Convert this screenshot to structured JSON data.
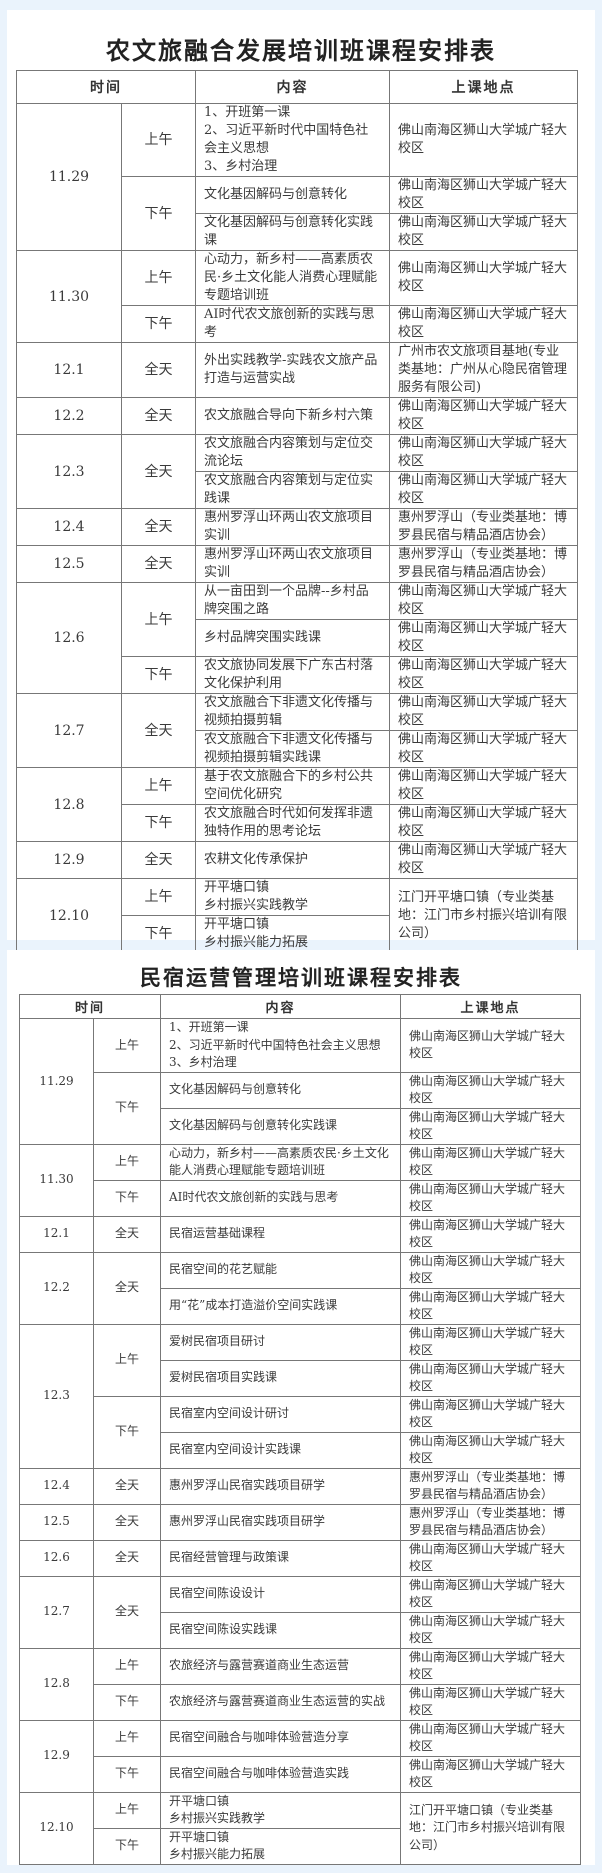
{
  "colors": {
    "background": "#eaf3fc",
    "card": "#ffffff",
    "border": "#777777"
  },
  "table1": {
    "title": "农文旅融合发展培训班课程安排表",
    "headers": {
      "time": "时间",
      "content": "内容",
      "location": "上课地点"
    },
    "days": [
      {
        "date": "11.29",
        "sessions": [
          {
            "period": "上午",
            "items": [
              {
                "content": "1、开班第一课\n2、习近平新时代中国特色社会主义思想\n3、乡村治理",
                "location": "佛山南海区狮山大学城广轻大校区"
              }
            ]
          },
          {
            "period": "下午",
            "items": [
              {
                "content": "文化基因解码与创意转化",
                "location": "佛山南海区狮山大学城广轻大校区"
              },
              {
                "content": "文化基因解码与创意转化实践课",
                "location": "佛山南海区狮山大学城广轻大校区"
              }
            ]
          }
        ]
      },
      {
        "date": "11.30",
        "sessions": [
          {
            "period": "上午",
            "items": [
              {
                "content": "心动力，新乡村——高素质农民·乡土文化能人消费心理赋能专题培训班",
                "location": "佛山南海区狮山大学城广轻大校区"
              }
            ]
          },
          {
            "period": "下午",
            "items": [
              {
                "content": "AI时代农文旅创新的实践与思考",
                "location": "佛山南海区狮山大学城广轻大校区"
              }
            ]
          }
        ]
      },
      {
        "date": "12.1",
        "sessions": [
          {
            "period": "全天",
            "items": [
              {
                "content": "外出实践教学-实践农文旅产品打造与运营实战",
                "location": "广州市农文旅项目基地(专业类基地：广州从心隐民宿管理服务有限公司)"
              }
            ]
          }
        ]
      },
      {
        "date": "12.2",
        "sessions": [
          {
            "period": "全天",
            "items": [
              {
                "content": "农文旅融合导向下新乡村六策",
                "location": "佛山南海区狮山大学城广轻大校区"
              }
            ]
          }
        ]
      },
      {
        "date": "12.3",
        "sessions": [
          {
            "period": "全天",
            "items": [
              {
                "content": "农文旅融合内容策划与定位交流论坛",
                "location": "佛山南海区狮山大学城广轻大校区"
              },
              {
                "content": "农文旅融合内容策划与定位实践课",
                "location": "佛山南海区狮山大学城广轻大校区"
              }
            ]
          }
        ]
      },
      {
        "date": "12.4",
        "sessions": [
          {
            "period": "全天",
            "items": [
              {
                "content": "惠州罗浮山环两山农文旅项目实训",
                "location": "惠州罗浮山（专业类基地：博罗县民宿与精品酒店协会）"
              }
            ]
          }
        ]
      },
      {
        "date": "12.5",
        "sessions": [
          {
            "period": "全天",
            "items": [
              {
                "content": "惠州罗浮山环两山农文旅项目实训",
                "location": "惠州罗浮山（专业类基地：博罗县民宿与精品酒店协会）"
              }
            ]
          }
        ]
      },
      {
        "date": "12.6",
        "sessions": [
          {
            "period": "上午",
            "items": [
              {
                "content": "从一亩田到一个品牌--乡村品牌突围之路",
                "location": "佛山南海区狮山大学城广轻大校区"
              },
              {
                "content": "乡村品牌突围实践课",
                "location": "佛山南海区狮山大学城广轻大校区"
              }
            ]
          },
          {
            "period": "下午",
            "items": [
              {
                "content": "农文旅协同发展下广东古村落文化保护利用",
                "location": "佛山南海区狮山大学城广轻大校区"
              }
            ]
          }
        ]
      },
      {
        "date": "12.7",
        "sessions": [
          {
            "period": "全天",
            "items": [
              {
                "content": "农文旅融合下非遗文化传播与视频拍摄剪辑",
                "location": "佛山南海区狮山大学城广轻大校区"
              },
              {
                "content": "农文旅融合下非遗文化传播与视频拍摄剪辑实践课",
                "location": "佛山南海区狮山大学城广轻大校区"
              }
            ]
          }
        ]
      },
      {
        "date": "12.8",
        "sessions": [
          {
            "period": "上午",
            "items": [
              {
                "content": "基于农文旅融合下的乡村公共空间优化研究",
                "location": "佛山南海区狮山大学城广轻大校区"
              }
            ]
          },
          {
            "period": "下午",
            "items": [
              {
                "content": "农文旅融合时代如何发挥非遗独特作用的思考论坛",
                "location": "佛山南海区狮山大学城广轻大校区"
              }
            ]
          }
        ]
      },
      {
        "date": "12.9",
        "sessions": [
          {
            "period": "全天",
            "items": [
              {
                "content": "农耕文化传承保护",
                "location": "佛山南海区狮山大学城广轻大校区"
              }
            ]
          }
        ]
      },
      {
        "date": "12.10",
        "shared_location": "江门开平塘口镇（专业类基地：江门市乡村振兴培训有限公司）",
        "sessions": [
          {
            "period": "上午",
            "items": [
              {
                "content": "开平塘口镇\n乡村振兴实践教学"
              }
            ]
          },
          {
            "period": "下午",
            "items": [
              {
                "content": "开平塘口镇\n乡村振兴能力拓展"
              }
            ]
          }
        ]
      }
    ]
  },
  "table2": {
    "title": "民宿运营管理培训班课程安排表",
    "headers": {
      "time": "时间",
      "content": "内容",
      "location": "上课地点"
    },
    "days": [
      {
        "date": "11.29",
        "sessions": [
          {
            "period": "上午",
            "items": [
              {
                "content": "1、开班第一课\n2、习近平新时代中国特色社会主义思想\n3、乡村治理",
                "location": "佛山南海区狮山大学城广轻大校区"
              }
            ]
          },
          {
            "period": "下午",
            "items": [
              {
                "content": "文化基因解码与创意转化",
                "location": "佛山南海区狮山大学城广轻大校区"
              },
              {
                "content": "文化基因解码与创意转化实践课",
                "location": "佛山南海区狮山大学城广轻大校区"
              }
            ]
          }
        ]
      },
      {
        "date": "11.30",
        "sessions": [
          {
            "period": "上午",
            "items": [
              {
                "content": "心动力，新乡村——高素质农民·乡土文化能人消费心理赋能专题培训班",
                "location": "佛山南海区狮山大学城广轻大校区"
              }
            ]
          },
          {
            "period": "下午",
            "items": [
              {
                "content": "AI时代农文旅创新的实践与思考",
                "location": "佛山南海区狮山大学城广轻大校区"
              }
            ]
          }
        ]
      },
      {
        "date": "12.1",
        "sessions": [
          {
            "period": "全天",
            "items": [
              {
                "content": "民宿运营基础课程",
                "location": "佛山南海区狮山大学城广轻大校区"
              }
            ]
          }
        ]
      },
      {
        "date": "12.2",
        "sessions": [
          {
            "period": "全天",
            "items": [
              {
                "content": "民宿空间的花艺赋能",
                "location": "佛山南海区狮山大学城广轻大校区"
              },
              {
                "content": "用“花”成本打造溢价空间实践课",
                "location": "佛山南海区狮山大学城广轻大校区"
              }
            ]
          }
        ]
      },
      {
        "date": "12.3",
        "sessions": [
          {
            "period": "上午",
            "items": [
              {
                "content": "爱树民宿项目研讨",
                "location": "佛山南海区狮山大学城广轻大校区"
              },
              {
                "content": "爱树民宿项目实践课",
                "location": "佛山南海区狮山大学城广轻大校区"
              }
            ]
          },
          {
            "period": "下午",
            "items": [
              {
                "content": "民宿室内空间设计研讨",
                "location": "佛山南海区狮山大学城广轻大校区"
              },
              {
                "content": "民宿室内空间设计实践课",
                "location": "佛山南海区狮山大学城广轻大校区"
              }
            ]
          }
        ]
      },
      {
        "date": "12.4",
        "sessions": [
          {
            "period": "全天",
            "items": [
              {
                "content": "惠州罗浮山民宿实践项目研学",
                "location": "惠州罗浮山（专业类基地：博罗县民宿与精品酒店协会）"
              }
            ]
          }
        ]
      },
      {
        "date": "12.5",
        "sessions": [
          {
            "period": "全天",
            "items": [
              {
                "content": "惠州罗浮山民宿实践项目研学",
                "location": "惠州罗浮山（专业类基地：博罗县民宿与精品酒店协会）"
              }
            ]
          }
        ]
      },
      {
        "date": "12.6",
        "sessions": [
          {
            "period": "全天",
            "items": [
              {
                "content": "民宿经营管理与政策课",
                "location": "佛山南海区狮山大学城广轻大校区"
              }
            ]
          }
        ]
      },
      {
        "date": "12.7",
        "sessions": [
          {
            "period": "全天",
            "items": [
              {
                "content": "民宿空间陈设设计",
                "location": "佛山南海区狮山大学城广轻大校区"
              },
              {
                "content": "民宿空间陈设实践课",
                "location": "佛山南海区狮山大学城广轻大校区"
              }
            ]
          }
        ]
      },
      {
        "date": "12.8",
        "sessions": [
          {
            "period": "上午",
            "items": [
              {
                "content": "农旅经济与露营赛道商业生态运营",
                "location": "佛山南海区狮山大学城广轻大校区"
              }
            ]
          },
          {
            "period": "下午",
            "items": [
              {
                "content": "农旅经济与露营赛道商业生态运营的实战",
                "location": "佛山南海区狮山大学城广轻大校区"
              }
            ]
          }
        ]
      },
      {
        "date": "12.9",
        "sessions": [
          {
            "period": "上午",
            "items": [
              {
                "content": "民宿空间融合与咖啡体验营造分享",
                "location": "佛山南海区狮山大学城广轻大校区"
              }
            ]
          },
          {
            "period": "下午",
            "items": [
              {
                "content": "民宿空间融合与咖啡体验营造实践",
                "location": "佛山南海区狮山大学城广轻大校区"
              }
            ]
          }
        ]
      },
      {
        "date": "12.10",
        "shared_location": "江门开平塘口镇（专业类基地：江门市乡村振兴培训有限公司）",
        "sessions": [
          {
            "period": "上午",
            "items": [
              {
                "content": "开平塘口镇\n乡村振兴实践教学"
              }
            ]
          },
          {
            "period": "下午",
            "items": [
              {
                "content": "开平塘口镇\n乡村振兴能力拓展"
              }
            ]
          }
        ]
      }
    ]
  }
}
